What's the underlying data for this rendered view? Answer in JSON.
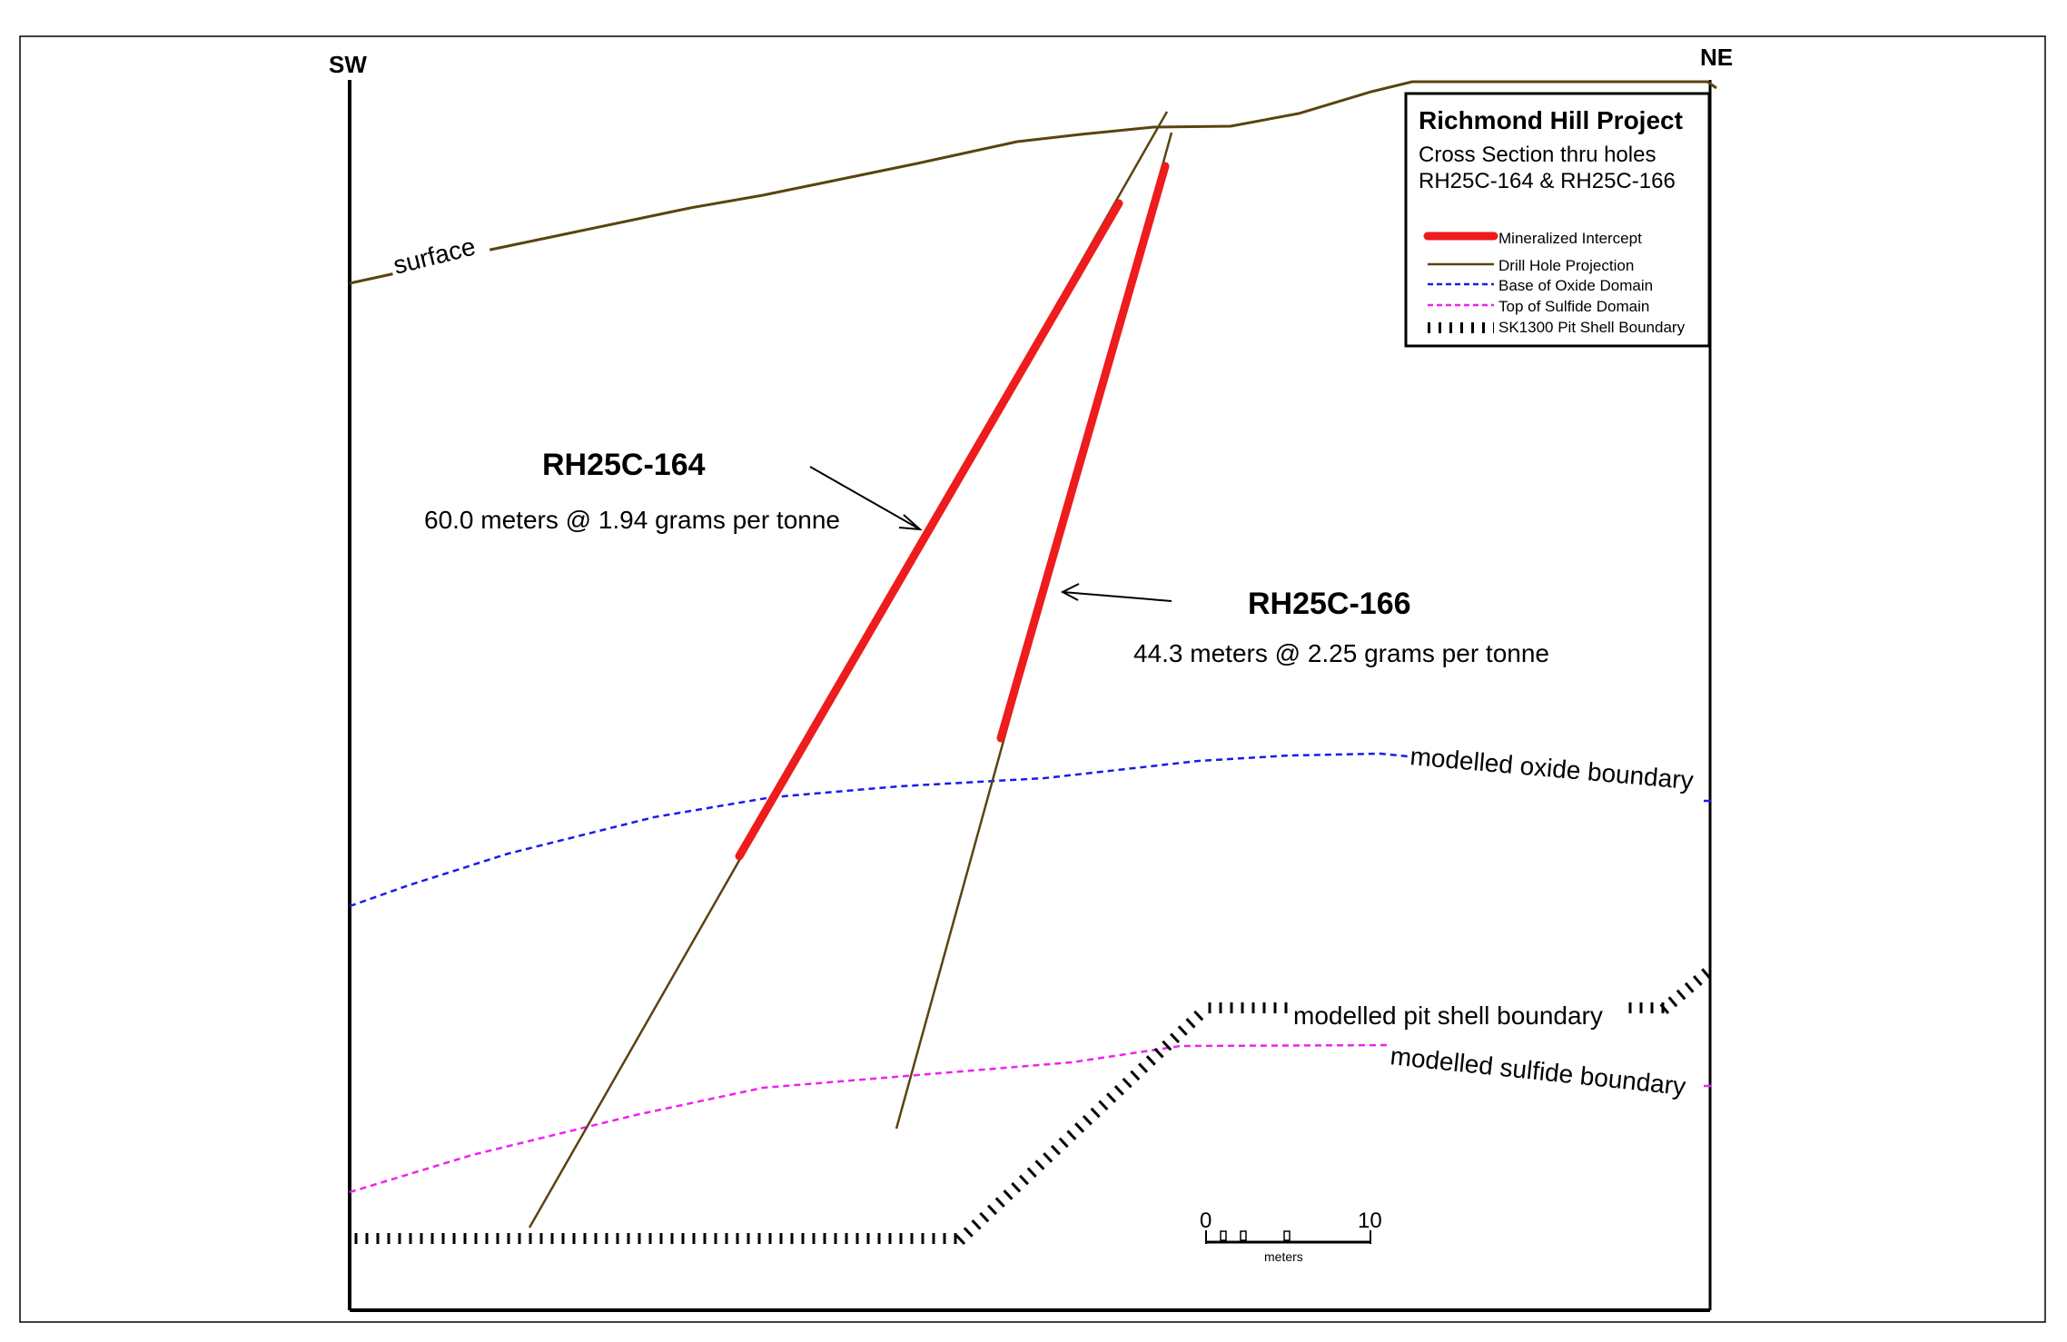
{
  "directions": {
    "left": "SW",
    "right": "NE"
  },
  "surface_label": "surface",
  "holes": [
    {
      "name": "RH25C-164",
      "result": "60.0 meters @ 1.94 grams per tonne"
    },
    {
      "name": "RH25C-166",
      "result": "44.3 meters @ 2.25 grams per tonne"
    }
  ],
  "boundaries": {
    "oxide": "modelled oxide boundary",
    "pit_shell": "modelled pit shell boundary",
    "sulfide": "modelled sulfide boundary"
  },
  "legend": {
    "title": "Richmond Hill Project",
    "subtitle_line1": "Cross Section thru holes",
    "subtitle_line2": "RH25C-164 & RH25C-166",
    "items": [
      {
        "label": "Mineralized Intercept",
        "color": "#ee1c1c",
        "style": "thick"
      },
      {
        "label": "Drill Hole Projection",
        "color": "#5a4310",
        "style": "solid"
      },
      {
        "label": "Base of Oxide Domain",
        "color": "#1a1aee",
        "style": "dashed"
      },
      {
        "label": "Top of Sulfide Domain",
        "color": "#ee22ee",
        "style": "dashed"
      },
      {
        "label": "SK1300 Pit Shell Boundary",
        "color": "#000000",
        "style": "hatched"
      }
    ]
  },
  "scale_bar": {
    "start": "0",
    "end": "10",
    "unit": "meters"
  },
  "colors": {
    "surface": "#5a4310",
    "drill": "#5a4310",
    "intercept": "#ee1c1c",
    "oxide": "#1a1aee",
    "sulfide": "#ee22ee",
    "pit": "#000000"
  }
}
